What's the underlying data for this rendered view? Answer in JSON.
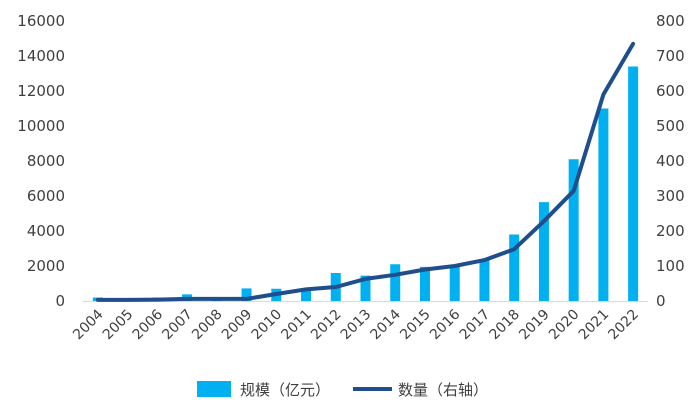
{
  "chart_data": {
    "type": "bar",
    "categories": [
      "2004",
      "2005",
      "2006",
      "2007",
      "2008",
      "2009",
      "2010",
      "2011",
      "2012",
      "2013",
      "2014",
      "2015",
      "2016",
      "2017",
      "2018",
      "2019",
      "2020",
      "2021",
      "2022"
    ],
    "series": [
      {
        "name": "规模（亿元）",
        "type": "bar",
        "axis": "left",
        "color": "#00b0f0",
        "values": [
          200,
          150,
          200,
          380,
          230,
          720,
          700,
          680,
          1600,
          1450,
          2100,
          1950,
          2050,
          2350,
          3800,
          5650,
          8100,
          11000,
          13400
        ]
      },
      {
        "name": "数量（右轴）",
        "type": "line",
        "axis": "right",
        "color": "#1f4e8c",
        "values": [
          3,
          3,
          4,
          6,
          6,
          6,
          20,
          33,
          40,
          63,
          75,
          90,
          100,
          117,
          148,
          228,
          315,
          590,
          735
        ]
      }
    ],
    "yleft": {
      "lim": [
        0,
        16000
      ],
      "ticks": [
        "0",
        "2000",
        "4000",
        "6000",
        "8000",
        "10000",
        "12000",
        "14000",
        "16000"
      ]
    },
    "yright": {
      "lim": [
        0,
        800
      ],
      "ticks": [
        "0",
        "100",
        "200",
        "300",
        "400",
        "500",
        "600",
        "700",
        "800"
      ]
    },
    "grid": false,
    "legend": "bottom"
  }
}
